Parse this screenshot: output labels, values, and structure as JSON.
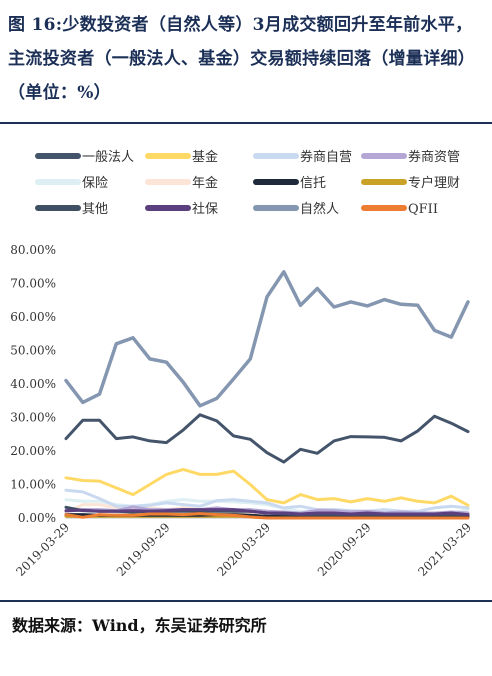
{
  "title": "图 16:少数投资者（自然人等）3月成交额回升至年前水平，主流投资者（一般法人、基金）交易额持续回落（增量详细）（单位：%）",
  "source": "数据来源：Wind，东吴证券研究所",
  "colors": {
    "title": "#1b2f57",
    "rule": "#1b2f57"
  },
  "chart_data": {
    "type": "line",
    "ylim": [
      0,
      80
    ],
    "yticks": [
      "0.00%",
      "10.00%",
      "20.00%",
      "30.00%",
      "40.00%",
      "50.00%",
      "60.00%",
      "70.00%",
      "80.00%"
    ],
    "xtick_labels": [
      "2019-03-29",
      "2019-09-29",
      "2020-03-29",
      "2020-09-29",
      "2021-03-29"
    ],
    "x": [
      "2019-03",
      "2019-04",
      "2019-05",
      "2019-06",
      "2019-07",
      "2019-08",
      "2019-09",
      "2019-10",
      "2019-11",
      "2019-12",
      "2020-01",
      "2020-02",
      "2020-03",
      "2020-04",
      "2020-05",
      "2020-06",
      "2020-07",
      "2020-08",
      "2020-09",
      "2020-10",
      "2020-11",
      "2020-12",
      "2021-01",
      "2021-02",
      "2021-03"
    ],
    "series": [
      {
        "name": "一般法人",
        "color": "#44546a",
        "width": 3,
        "values": [
          23.7,
          29.2,
          29.2,
          23.7,
          24.2,
          23,
          22.5,
          26.3,
          30.8,
          29,
          24.5,
          23.5,
          19.5,
          16.7,
          20.5,
          19.3,
          23,
          24.3,
          24.2,
          24.1,
          23,
          26,
          30.4,
          28.3,
          25.8
        ]
      },
      {
        "name": "基金",
        "color": "#ffd966",
        "width": 3,
        "values": [
          12,
          11.2,
          11,
          9,
          7,
          10,
          13,
          14.5,
          13,
          13,
          14,
          10,
          5.5,
          4.5,
          7,
          5.5,
          5.8,
          4.8,
          5.8,
          5,
          6,
          5,
          4.5,
          6.5,
          3.8
        ]
      },
      {
        "name": "券商自营",
        "color": "#c9d9f0",
        "width": 3,
        "values": [
          8.3,
          7.8,
          5.8,
          3.5,
          3.5,
          3.8,
          4.5,
          4,
          3.5,
          5.2,
          5.5,
          5,
          4.5,
          3,
          3.5,
          2.5,
          2.5,
          2.2,
          2,
          2.5,
          2,
          2,
          3,
          3.5,
          3
        ]
      },
      {
        "name": "券商资管",
        "color": "#b4a7d6",
        "width": 3,
        "values": [
          2,
          2.5,
          2.5,
          2.2,
          3.3,
          2.5,
          2.5,
          2.5,
          2.5,
          3,
          2.5,
          2.5,
          2,
          1.8,
          1.5,
          2.3,
          2.2,
          1.8,
          2,
          1.5,
          1.8,
          1.5,
          1.5,
          1.8,
          1.5
        ]
      },
      {
        "name": "保险",
        "color": "#deeff4",
        "width": 3,
        "values": [
          5.5,
          5,
          5,
          4,
          3.5,
          4,
          5,
          5.5,
          5,
          5,
          4.8,
          4.5,
          4,
          2.8,
          2,
          2,
          2.5,
          2,
          2,
          1.5,
          1.5,
          1.5,
          1.5,
          1.5,
          2.5
        ]
      },
      {
        "name": "年金",
        "color": "#fce4d6",
        "width": 3,
        "values": [
          1.5,
          4,
          4,
          3,
          2.5,
          3,
          2.5,
          3,
          2.5,
          3,
          2,
          1.5,
          1.8,
          1.5,
          1,
          1,
          1,
          1,
          1,
          1,
          1,
          1,
          1,
          1,
          1
        ]
      },
      {
        "name": "信托",
        "color": "#1f2a3c",
        "width": 3,
        "values": [
          1,
          1,
          0.8,
          0.8,
          0.8,
          0.8,
          0.8,
          0.8,
          0.8,
          1,
          1,
          0.8,
          0.5,
          0.5,
          0.5,
          0.5,
          0.5,
          0.5,
          0.5,
          0.5,
          0.5,
          0.5,
          0.5,
          0.5,
          0.5
        ]
      },
      {
        "name": "专户理财",
        "color": "#c9a227",
        "width": 3,
        "values": [
          0.5,
          0.5,
          0.5,
          0.5,
          0.5,
          0.5,
          0.5,
          0.5,
          0.5,
          0.5,
          0.5,
          0.5,
          0.3,
          0.3,
          0.3,
          0.3,
          0.3,
          0.3,
          0.3,
          0.3,
          0.3,
          0.3,
          0.3,
          0.3,
          0.3
        ]
      },
      {
        "name": "其他",
        "color": "#3f5064",
        "width": 3,
        "values": [
          3.2,
          2.2,
          2,
          2,
          1.8,
          2,
          2,
          2,
          2,
          2,
          2,
          2,
          1.5,
          1.2,
          1,
          1,
          1,
          1,
          1,
          1,
          1,
          1,
          1,
          1,
          1
        ]
      },
      {
        "name": "社保",
        "color": "#5b3f7f",
        "width": 3,
        "values": [
          2.2,
          2.3,
          2,
          2,
          2.2,
          2,
          2.2,
          2.5,
          2.5,
          2.5,
          2.5,
          2,
          1.5,
          1.5,
          1.2,
          1.5,
          1.5,
          1.2,
          1.5,
          1.2,
          1.2,
          1.2,
          1.2,
          1.5,
          1
        ]
      },
      {
        "name": "自然人",
        "color": "#8496b0",
        "width": 3.5,
        "values": [
          41,
          34.5,
          37,
          52,
          53.8,
          47.5,
          46.5,
          40.5,
          33.5,
          35.7,
          41.5,
          47.5,
          66,
          73.5,
          63.5,
          68.5,
          63,
          64.5,
          63.3,
          65.2,
          63.8,
          63.5,
          56,
          54,
          64.5
        ]
      },
      {
        "name": "QFII",
        "color": "#ed7d31",
        "width": 3,
        "values": [
          1,
          0.2,
          1,
          0.8,
          0.8,
          1.2,
          1.2,
          1,
          1.3,
          1,
          0.8,
          0.3,
          0,
          0,
          0,
          0,
          0,
          0,
          0,
          0,
          0,
          0,
          0,
          0,
          0
        ]
      }
    ],
    "legend": {
      "position": "top",
      "columns": 4
    }
  }
}
